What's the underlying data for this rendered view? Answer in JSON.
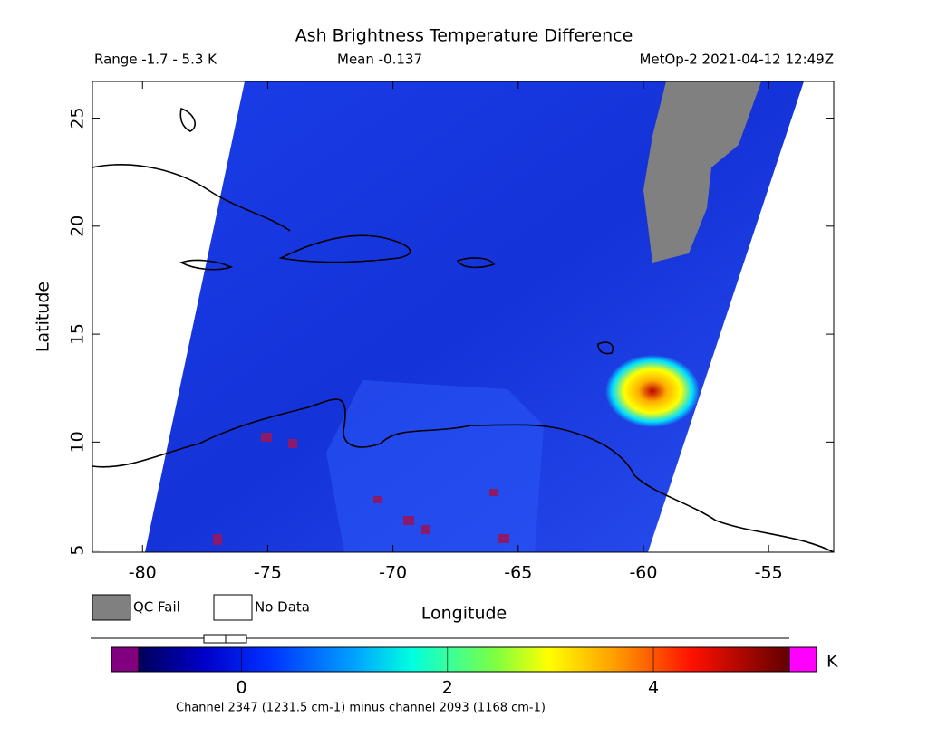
{
  "title": "Ash Brightness Temperature Difference",
  "range_label": "Range -1.7 - 5.3 K",
  "mean_label": "Mean -0.137",
  "satellite_label": "MetOp-2 2021-04-12 12:49Z",
  "map": {
    "xlabel": "Longitude",
    "ylabel": "Latitude",
    "xlim": [
      -82,
      -52.4
    ],
    "ylim": [
      4.9,
      26.7
    ],
    "xticks": [
      -80,
      -75,
      -70,
      -65,
      -60,
      -55
    ],
    "yticks": [
      5,
      10,
      15,
      20,
      25
    ]
  },
  "legend": [
    {
      "label": "QC Fail",
      "color": "#808080"
    },
    {
      "label": "No Data",
      "color": "#ffffff"
    }
  ],
  "colorbar": {
    "unit": "K",
    "lim": [
      -1.0,
      5.32
    ],
    "ticks": [
      0,
      2,
      4
    ],
    "caption": "Channel 2347 (1231.5 cm-1) minus channel 2093 (1168 cm-1)"
  }
}
